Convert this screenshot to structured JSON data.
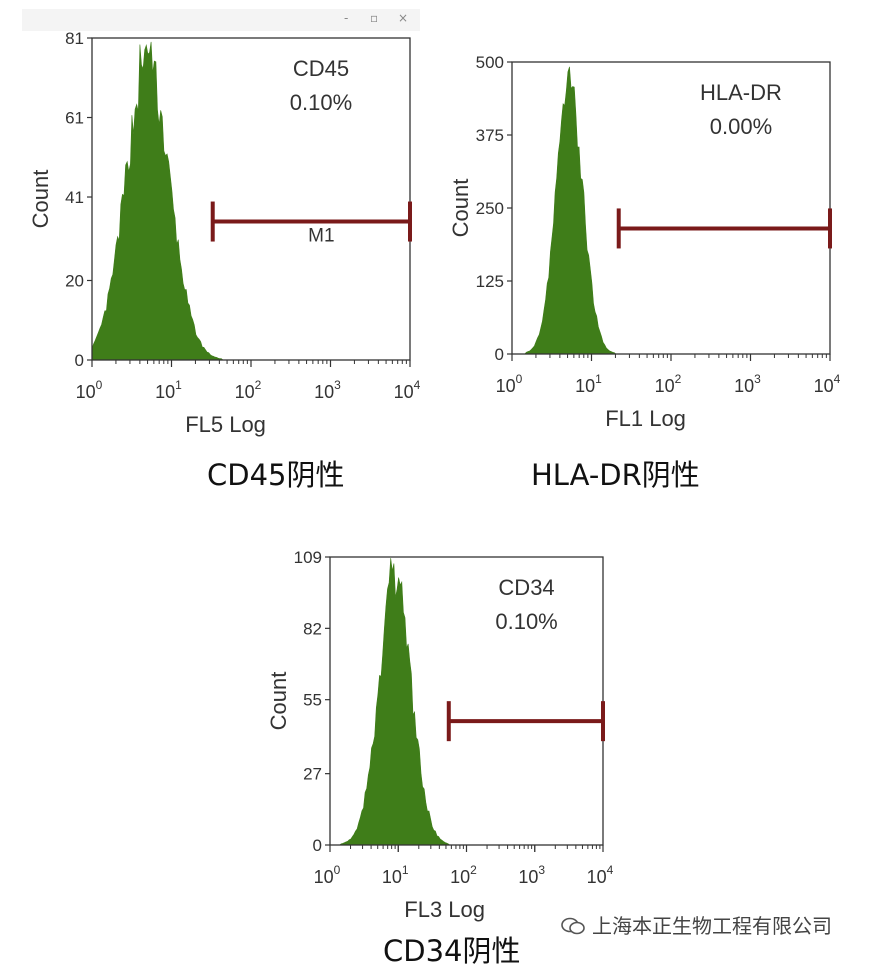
{
  "window": {
    "controls": [
      "-",
      "▫",
      "×"
    ]
  },
  "chart_data": [
    {
      "type": "histogram",
      "xscale": "log",
      "xlim": [
        1,
        10000
      ],
      "x_ticks": [
        {
          "base": "10",
          "exp": "0"
        },
        {
          "base": "10",
          "exp": "1"
        },
        {
          "base": "10",
          "exp": "2"
        },
        {
          "base": "10",
          "exp": "3"
        },
        {
          "base": "10",
          "exp": "4"
        }
      ],
      "ylim": [
        0,
        81
      ],
      "y_ticks": [
        "0",
        "20",
        "41",
        "61",
        "81"
      ],
      "xlabel": "FL5 Log",
      "ylabel": "Count",
      "marker": "CD45",
      "percent": "0.10%",
      "gate": {
        "label": "M1",
        "x_start": 33,
        "x_end": 10000
      },
      "peak_x": 5,
      "peak_y": 81,
      "spread_decades": 0.28,
      "color": "#3f7d19",
      "gate_color": "#7a1a1a",
      "caption": "CD45阴性"
    },
    {
      "type": "histogram",
      "xscale": "log",
      "xlim": [
        1,
        10000
      ],
      "x_ticks": [
        {
          "base": "10",
          "exp": "0"
        },
        {
          "base": "10",
          "exp": "1"
        },
        {
          "base": "10",
          "exp": "2"
        },
        {
          "base": "10",
          "exp": "3"
        },
        {
          "base": "10",
          "exp": "4"
        }
      ],
      "ylim": [
        0,
        500
      ],
      "y_ticks": [
        "0",
        "125",
        "250",
        "375",
        "500"
      ],
      "xlabel": "FL1 Log",
      "ylabel": "Count",
      "marker": "HLA-DR",
      "percent": "0.00%",
      "gate": {
        "label": "",
        "x_start": 22,
        "x_end": 10000
      },
      "peak_x": 5.3,
      "peak_y": 500,
      "spread_decades": 0.17,
      "color": "#3f7d19",
      "gate_color": "#7a1a1a",
      "caption": "HLA-DR阴性"
    },
    {
      "type": "histogram",
      "xscale": "log",
      "xlim": [
        1,
        10000
      ],
      "x_ticks": [
        {
          "base": "10",
          "exp": "0"
        },
        {
          "base": "10",
          "exp": "1"
        },
        {
          "base": "10",
          "exp": "2"
        },
        {
          "base": "10",
          "exp": "3"
        },
        {
          "base": "10",
          "exp": "4"
        }
      ],
      "ylim": [
        0,
        109
      ],
      "y_ticks": [
        "0",
        "27",
        "55",
        "82",
        "109"
      ],
      "xlabel": "FL3 Log",
      "ylabel": "Count",
      "marker": "CD34",
      "percent": "0.10%",
      "gate": {
        "label": "",
        "x_start": 55,
        "x_end": 10000
      },
      "peak_x": 9,
      "peak_y": 109,
      "spread_decades": 0.24,
      "color": "#3f7d19",
      "gate_color": "#7a1a1a",
      "caption": "CD34阴性"
    }
  ],
  "watermark": "上海本正生物工程有限公司"
}
